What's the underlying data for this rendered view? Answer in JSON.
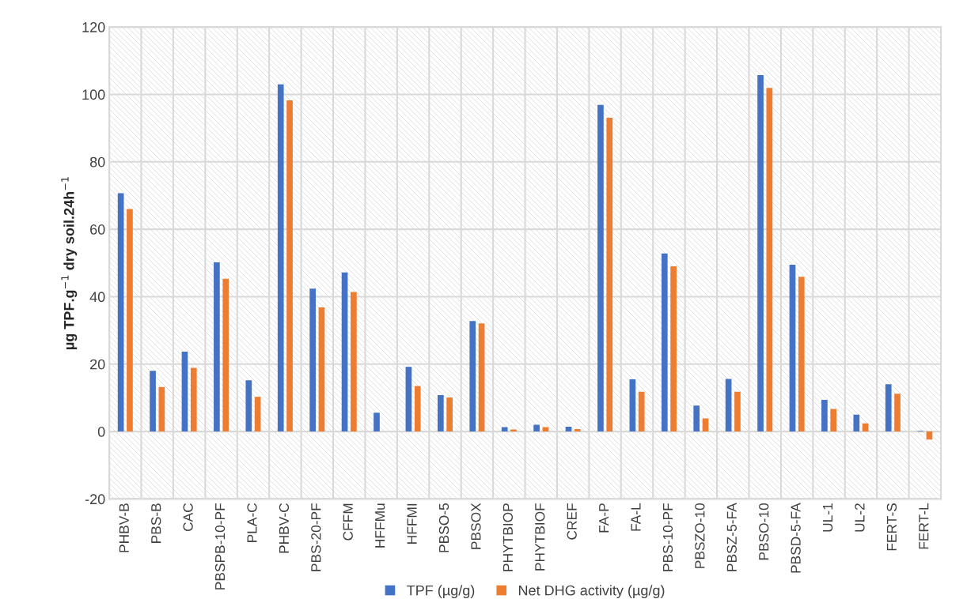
{
  "chart_data": {
    "type": "bar",
    "ylabel": "µg TPF.g$^{−1}$ dry soil.24h$^{−1}$",
    "categories": [
      "PHBV-B",
      "PBS-B",
      "CAC",
      "PBSPB-10-PF",
      "PLA-C",
      "PHBV-C",
      "PBS-20-PF",
      "CFFM",
      "HFFMu",
      "HFFMI",
      "PBSO-5",
      "PBSOX",
      "PHYTBIOP",
      "PHYTBIOF",
      "CREF",
      "FA-P",
      "FA-L",
      "PBS-10-PF",
      "PBSZO-10",
      "PBSZ-5-FA",
      "PBSO-10",
      "PBSD-5-FA",
      "UL-1",
      "UL-2",
      "FERT-S",
      "FERT-L"
    ],
    "series": [
      {
        "name": "TPF (µg/g)",
        "color": "#4472c4",
        "values": [
          70.7,
          18,
          23.7,
          50.2,
          15.2,
          103,
          42.4,
          47.2,
          5.6,
          19.2,
          10.8,
          32.8,
          1.3,
          2,
          1.4,
          96.9,
          15.5,
          52.8,
          7.7,
          15.6,
          105.7,
          49.5,
          9.4,
          5,
          14,
          0.2
        ]
      },
      {
        "name": "Net DHG activity (µg/g)",
        "color": "#ed7d31",
        "values": [
          66,
          13.2,
          18.9,
          45.3,
          10.3,
          98.2,
          36.8,
          41.4,
          0,
          13.5,
          10.1,
          32.1,
          0.6,
          1.3,
          0.7,
          93.1,
          11.8,
          49,
          3.9,
          11.8,
          101.9,
          45.9,
          6.7,
          2.4,
          11.2,
          -2.4
        ]
      }
    ],
    "ylim": [
      -20,
      120
    ],
    "yticks": [
      -20,
      0,
      20,
      40,
      60,
      80,
      100,
      120
    ],
    "grid": true,
    "legend": "bottom"
  }
}
